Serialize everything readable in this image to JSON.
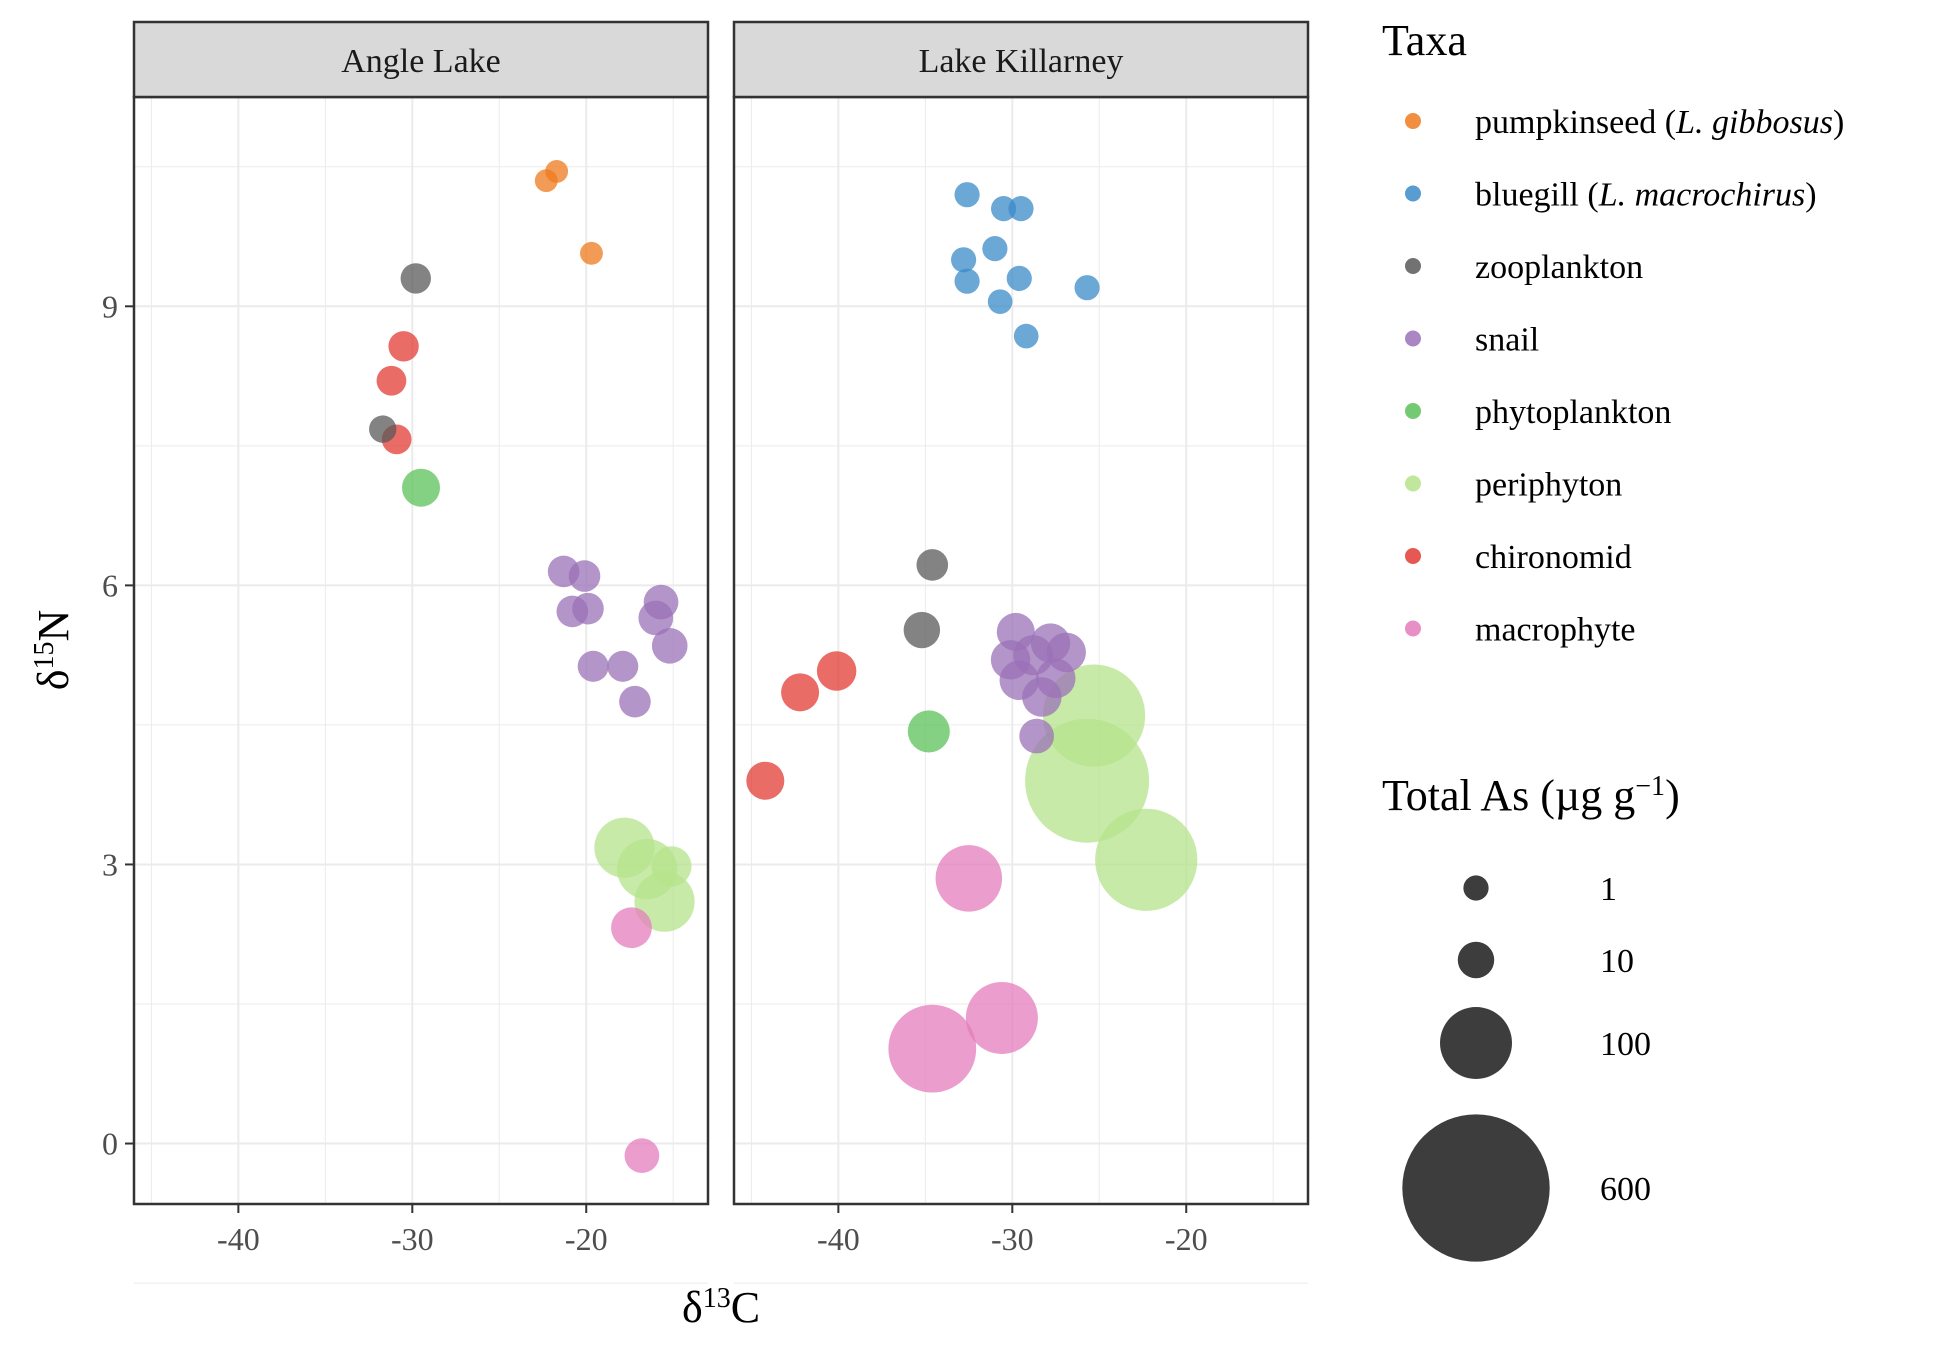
{
  "chart_data": {
    "type": "scatter",
    "xlabel": "δ13C",
    "ylabel": "δ15N",
    "xlim": [
      -46,
      -13
    ],
    "ylim": [
      -0.65,
      11.25
    ],
    "x_ticks": [
      -40,
      -30,
      -20
    ],
    "y_ticks": [
      0,
      3,
      6,
      9
    ],
    "grid": true,
    "facets": [
      {
        "name": "Angle Lake"
      },
      {
        "name": "Lake Killarney"
      }
    ],
    "legend_color": {
      "title": "Taxa",
      "placement": "right",
      "entries": [
        {
          "label": "pumpkinseed (",
          "italic": "L. gibbosus",
          "suffix": ")",
          "color": "#ee7a1e"
        },
        {
          "label": "bluegill (",
          "italic": "L. macrochirus",
          "suffix": ")",
          "color": "#3b8bc8"
        },
        {
          "label": "zooplankton",
          "italic": "",
          "suffix": "",
          "color": "#595959"
        },
        {
          "label": "snail",
          "italic": "",
          "suffix": "",
          "color": "#9b72b7"
        },
        {
          "label": "phytoplankton",
          "italic": "",
          "suffix": "",
          "color": "#5cc15a"
        },
        {
          "label": "periphyton",
          "italic": "",
          "suffix": "",
          "color": "#b6e38b"
        },
        {
          "label": "chironomid",
          "italic": "",
          "suffix": "",
          "color": "#e23b34"
        },
        {
          "label": "macrophyte",
          "italic": "",
          "suffix": "",
          "color": "#e47dbc"
        }
      ]
    },
    "legend_size": {
      "title": "Total As (µg g",
      "title_sup": "−1",
      "title_end": ")",
      "placement": "right",
      "entries": [
        {
          "label": "1",
          "value": 1
        },
        {
          "label": "10",
          "value": 10
        },
        {
          "label": "100",
          "value": 100
        },
        {
          "label": "600",
          "value": 600
        }
      ]
    },
    "series": [
      {
        "facet": 0,
        "taxon": 0,
        "points": [
          [
            -22.3,
            10.35,
            0.3
          ],
          [
            -21.7,
            10.45,
            0.3
          ],
          [
            -19.7,
            9.57,
            0.3
          ]
        ]
      },
      {
        "facet": 0,
        "taxon": 2,
        "points": [
          [
            -29.8,
            9.3,
            4
          ],
          [
            -31.7,
            7.68,
            2
          ]
        ]
      },
      {
        "facet": 0,
        "taxon": 6,
        "points": [
          [
            -30.5,
            8.57,
            4
          ],
          [
            -31.2,
            8.2,
            3.5
          ],
          [
            -30.9,
            7.57,
            3.5
          ]
        ]
      },
      {
        "facet": 0,
        "taxon": 4,
        "points": [
          [
            -29.5,
            7.05,
            12
          ]
        ]
      },
      {
        "facet": 0,
        "taxon": 3,
        "points": [
          [
            -21.3,
            6.15,
            5
          ],
          [
            -20.1,
            6.1,
            5
          ],
          [
            -20.8,
            5.72,
            5
          ],
          [
            -19.9,
            5.75,
            5
          ],
          [
            -19.6,
            5.13,
            4.5
          ],
          [
            -17.9,
            5.13,
            4.5
          ],
          [
            -17.2,
            4.75,
            5
          ],
          [
            -16.0,
            5.65,
            8
          ],
          [
            -15.7,
            5.82,
            8
          ],
          [
            -15.2,
            5.35,
            9
          ]
        ]
      },
      {
        "facet": 0,
        "taxon": 5,
        "points": [
          [
            -17.8,
            3.18,
            60
          ],
          [
            -16.5,
            2.95,
            60
          ],
          [
            -15.5,
            2.6,
            60
          ],
          [
            -15.1,
            2.98,
            15
          ]
        ]
      },
      {
        "facet": 0,
        "taxon": 7,
        "points": [
          [
            -17.4,
            2.32,
            16
          ],
          [
            -16.8,
            -0.13,
            8
          ]
        ]
      },
      {
        "facet": 1,
        "taxon": 1,
        "points": [
          [
            -32.6,
            10.2,
            1
          ],
          [
            -30.5,
            10.05,
            1
          ],
          [
            -29.5,
            10.05,
            1
          ],
          [
            -32.8,
            9.5,
            1
          ],
          [
            -31.0,
            9.62,
            1
          ],
          [
            -32.6,
            9.27,
            1
          ],
          [
            -29.6,
            9.3,
            1
          ],
          [
            -30.7,
            9.05,
            0.8
          ],
          [
            -25.7,
            9.2,
            1
          ],
          [
            -29.2,
            8.68,
            0.8
          ]
        ]
      },
      {
        "facet": 1,
        "taxon": 2,
        "points": [
          [
            -34.6,
            6.22,
            5
          ],
          [
            -35.2,
            5.52,
            10
          ]
        ]
      },
      {
        "facet": 1,
        "taxon": 6,
        "points": [
          [
            -40.1,
            5.08,
            14
          ],
          [
            -42.2,
            4.85,
            12
          ],
          [
            -44.2,
            3.9,
            12
          ]
        ]
      },
      {
        "facet": 1,
        "taxon": 4,
        "points": [
          [
            -34.8,
            4.43,
            18
          ]
        ]
      },
      {
        "facet": 1,
        "taxon": 3,
        "points": [
          [
            -29.8,
            5.5,
            12
          ],
          [
            -30.1,
            5.2,
            14
          ],
          [
            -29.6,
            4.98,
            14
          ],
          [
            -28.8,
            5.25,
            15
          ],
          [
            -27.8,
            5.38,
            14
          ],
          [
            -27.5,
            5.0,
            14
          ],
          [
            -26.9,
            5.28,
            14
          ],
          [
            -28.3,
            4.8,
            14
          ],
          [
            -28.6,
            4.38,
            8
          ]
        ]
      },
      {
        "facet": 1,
        "taxon": 5,
        "points": [
          [
            -25.3,
            4.6,
            250
          ],
          [
            -25.7,
            3.9,
            400
          ],
          [
            -22.3,
            3.05,
            250
          ]
        ]
      },
      {
        "facet": 1,
        "taxon": 7,
        "points": [
          [
            -32.5,
            2.85,
            80
          ],
          [
            -30.6,
            1.35,
            100
          ],
          [
            -34.6,
            1.02,
            170
          ]
        ]
      }
    ]
  }
}
